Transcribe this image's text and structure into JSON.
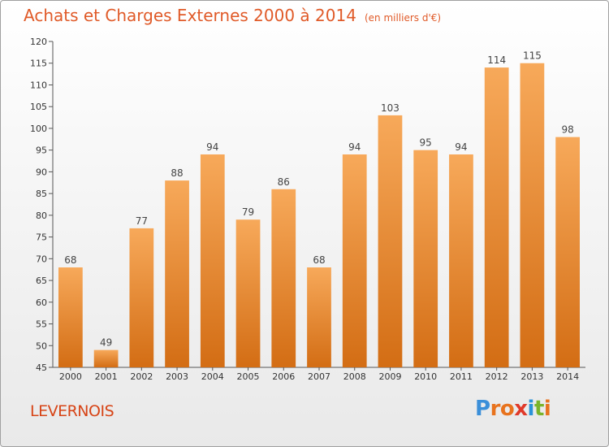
{
  "header": {
    "title": "Achats et Charges Externes 2000 à 2014",
    "subtitle": "(en milliers d'€)"
  },
  "footer": {
    "town": "LEVERNOIS",
    "logo_letters": [
      "P",
      "r",
      "o",
      "x",
      "i",
      "t",
      "i"
    ],
    "logo_colors": [
      "#3b8fd9",
      "#e8731e",
      "#e8731e",
      "#e03a2a",
      "#2b93d8",
      "#7ab42a",
      "#e8731e"
    ]
  },
  "colors": {
    "title": "#e05a28",
    "bar_top": "#f7a95a",
    "bar_bottom": "#d36d14",
    "axis": "#555555"
  },
  "chart_data": {
    "type": "bar",
    "categories": [
      "2000",
      "2001",
      "2002",
      "2003",
      "2004",
      "2005",
      "2006",
      "2007",
      "2008",
      "2009",
      "2010",
      "2011",
      "2012",
      "2013",
      "2014"
    ],
    "values": [
      68,
      49,
      77,
      88,
      94,
      79,
      86,
      68,
      94,
      103,
      95,
      94,
      114,
      115,
      98
    ],
    "title": "Achats et Charges Externes 2000 à 2014",
    "subtitle": "(en milliers d'€)",
    "ylim": [
      45,
      120
    ],
    "yticks": [
      45,
      50,
      55,
      60,
      65,
      70,
      75,
      80,
      85,
      90,
      95,
      100,
      105,
      110,
      115,
      120
    ],
    "grid": false,
    "legend": "none"
  }
}
